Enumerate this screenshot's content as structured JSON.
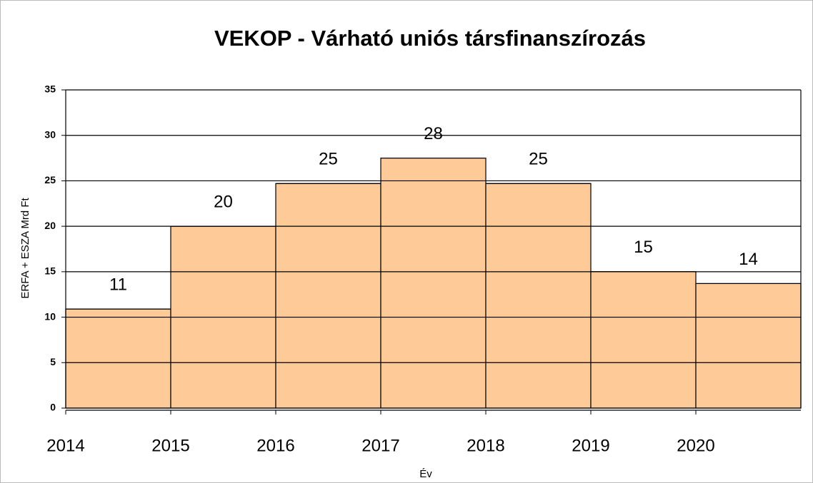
{
  "chart_data": {
    "type": "step",
    "title": "VEKOP - Várható uniós társfinanszírozás",
    "y_label": "ERFA + ESZA Mrd Ft",
    "x_label": "Év",
    "categories": [
      "2014",
      "2015",
      "2016",
      "2017",
      "2018",
      "2019",
      "2020"
    ],
    "values": [
      10.9,
      20,
      24.7,
      27.5,
      24.7,
      15,
      13.7
    ],
    "value_labels": [
      "11",
      "20",
      "25",
      "28",
      "25",
      "15",
      "14"
    ],
    "color": "#fdca98",
    "ylim": [
      0,
      35
    ],
    "yticks": [
      0,
      5,
      10,
      15,
      20,
      25,
      30,
      35
    ],
    "grid": true
  }
}
